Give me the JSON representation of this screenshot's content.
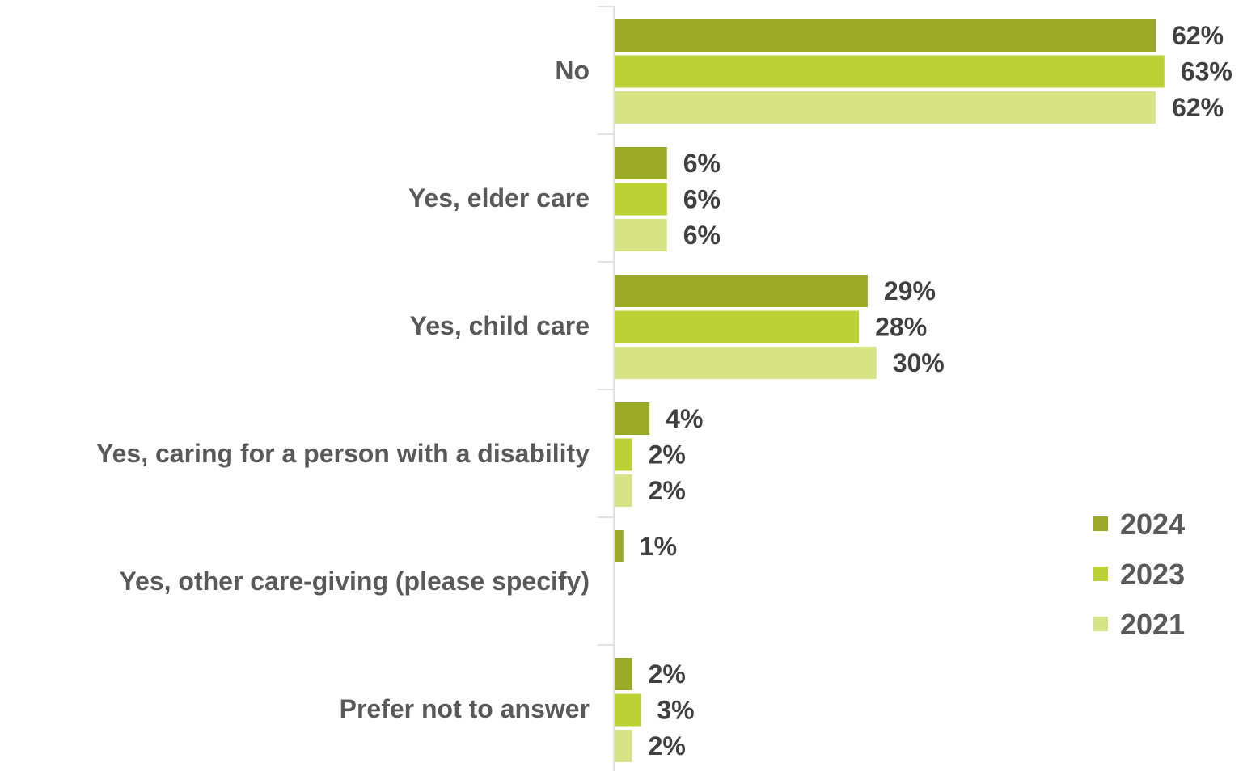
{
  "chart_data": {
    "type": "bar",
    "orientation": "horizontal",
    "categories": [
      "No",
      "Yes, elder care",
      "Yes, child care",
      "Yes, caring for a person with a disability",
      "Yes, other care-giving (please specify)",
      "Prefer not to answer"
    ],
    "series": [
      {
        "name": "2024",
        "color": "#9aaa27",
        "values": [
          62,
          6,
          29,
          4,
          1,
          2
        ]
      },
      {
        "name": "2023",
        "color": "#bcd135",
        "values": [
          63,
          6,
          28,
          2,
          null,
          3
        ]
      },
      {
        "name": "2021",
        "color": "#d6e486",
        "values": [
          62,
          6,
          30,
          2,
          null,
          2
        ]
      }
    ],
    "value_suffix": "%",
    "xlim": [
      0,
      63
    ],
    "grid": false,
    "legend": "bottom-right"
  }
}
